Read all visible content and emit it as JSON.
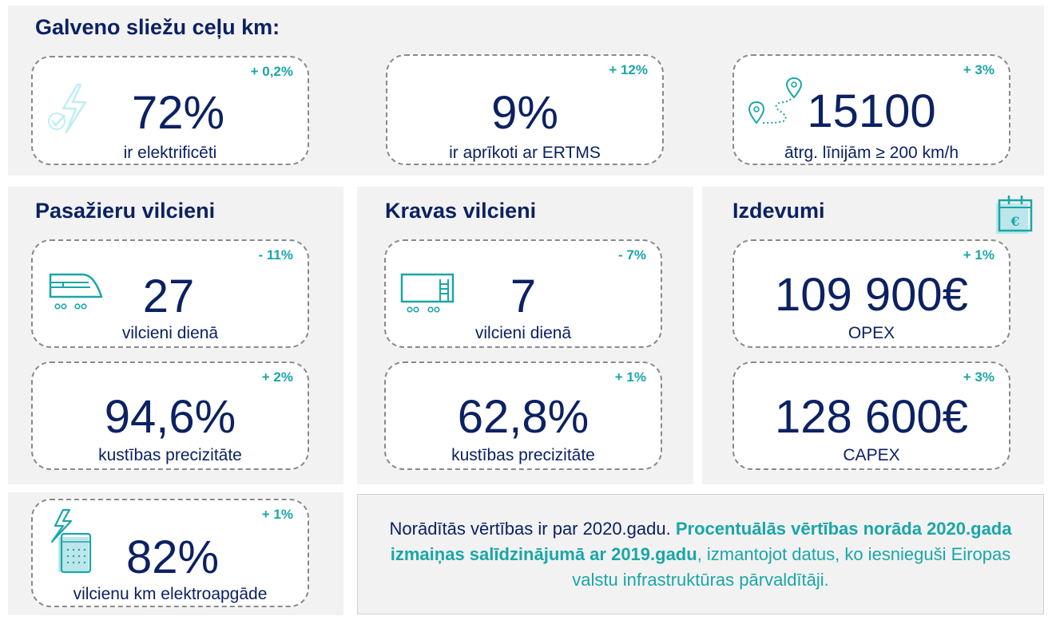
{
  "colors": {
    "navy": "#0b2162",
    "teal": "#1aa6a8",
    "panel_bg": "#f2f2f2"
  },
  "track": {
    "title": "Galveno sliežu ceļu km:",
    "cards": [
      {
        "icon": "lightning-check-icon",
        "delta": "+ 0,2%",
        "value": "72%",
        "label": "ir elektrificēti"
      },
      {
        "delta": "+ 12%",
        "value": "9%",
        "label": "ir aprīkoti ar ERTMS"
      },
      {
        "icon": "route-pins-icon",
        "delta": "+ 3%",
        "value": "15100",
        "label": "ātrg. līnijām ≥ 200 km/h"
      }
    ]
  },
  "passenger": {
    "title": "Pasažieru vilcieni",
    "trains": {
      "icon": "passenger-train-icon",
      "delta": "- 11%",
      "value": "27",
      "label": "vilcieni dienā"
    },
    "punctuality": {
      "delta": "+ 2%",
      "value": "94,6%",
      "label": "kustības precizitāte"
    }
  },
  "freight": {
    "title": "Kravas vilcieni",
    "trains": {
      "icon": "freight-wagon-icon",
      "delta": "- 7%",
      "value": "7",
      "label": "vilcieni dienā"
    },
    "punctuality": {
      "delta": "+ 1%",
      "value": "62,8%",
      "label": "kustības precizitāte"
    }
  },
  "expenses": {
    "title": "Izdevumi",
    "icon": "euro-calendar-icon",
    "opex": {
      "delta": "+ 1%",
      "value": "109 900€",
      "label": "OPEX"
    },
    "capex": {
      "delta": "+ 3%",
      "value": "128 600€",
      "label": "CAPEX"
    }
  },
  "electric": {
    "icon": "energy-meter-icon",
    "delta": "+ 1%",
    "value": "82%",
    "label": "vilcienu km elektroapgāde"
  },
  "note": {
    "part1": "Norādītās vērtības ir par 2020.gadu. ",
    "part2": "Procentuālās vērtības norāda 2020.gada izmaiņas salīdzinājumā ar 2019.gadu",
    "part3": ", izmantojot datus, ko iesnieguši Eiropas valstu infrastruktūras pārvaldītāji."
  }
}
